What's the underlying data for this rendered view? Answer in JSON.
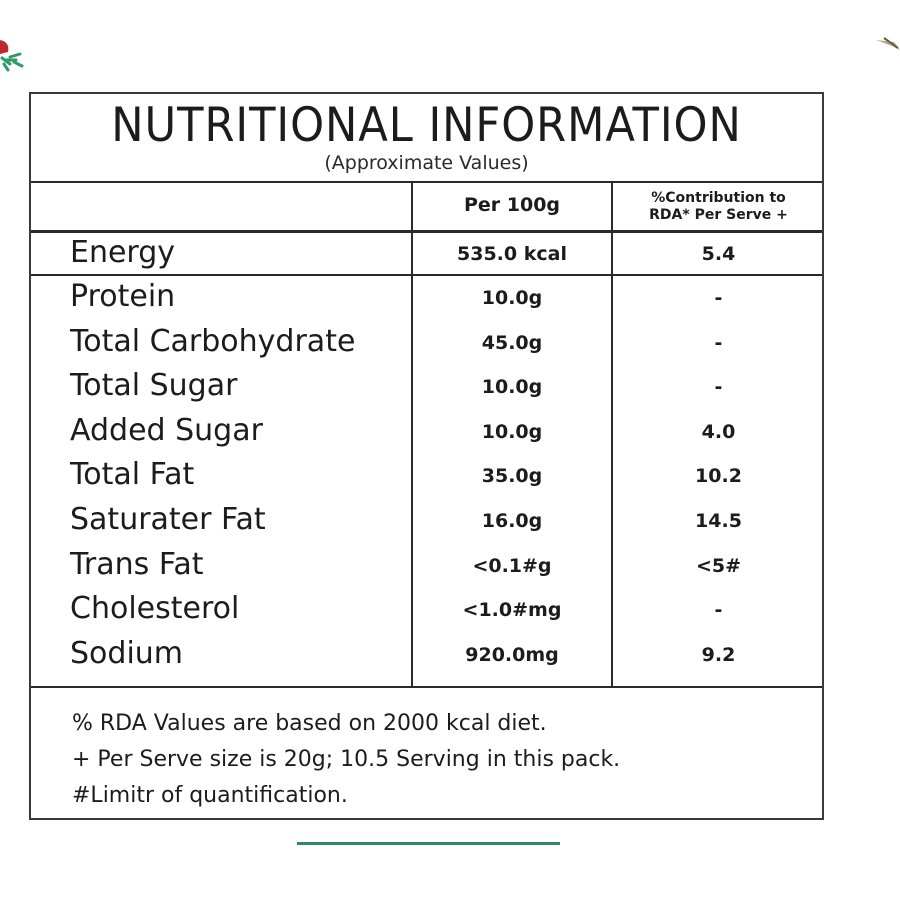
{
  "title": "NUTRITIONAL INFORMATION",
  "subtitle": "(Approximate Values)",
  "columns": {
    "per100": "Per 100g",
    "rda_line1": "%Contribution to",
    "rda_line2": "RDA* Per Serve +"
  },
  "energy": {
    "name": "Energy",
    "per100": "535.0 kcal",
    "rda": "5.4"
  },
  "nutrients": [
    {
      "name": "Protein",
      "per100": "10.0g",
      "rda": "-"
    },
    {
      "name": "Total Carbohydrate",
      "per100": "45.0g",
      "rda": "-"
    },
    {
      "name": "Total Sugar",
      "per100": "10.0g",
      "rda": "-"
    },
    {
      "name": "Added Sugar",
      "per100": "10.0g",
      "rda": "4.0"
    },
    {
      "name": "Total Fat",
      "per100": "35.0g",
      "rda": "10.2"
    },
    {
      "name": "Saturater Fat",
      "per100": "16.0g",
      "rda": "14.5"
    },
    {
      "name": "Trans Fat",
      "per100": "<0.1#g",
      "rda": "<5#"
    },
    {
      "name": "Cholesterol",
      "per100": "<1.0#mg",
      "rda": "-"
    },
    {
      "name": "Sodium",
      "per100": "920.0mg",
      "rda": "9.2"
    }
  ],
  "notes": [
    "% RDA Values are based on 2000 kcal diet.",
    "+ Per Serve size is 20g; 10.5 Serving in this pack.",
    "#Limitr of quantification."
  ],
  "colors": {
    "border": "#2a2a2a",
    "accent_underline": "#2b8a6a",
    "deco_red": "#c0282d",
    "deco_green": "#2f9a6a"
  }
}
